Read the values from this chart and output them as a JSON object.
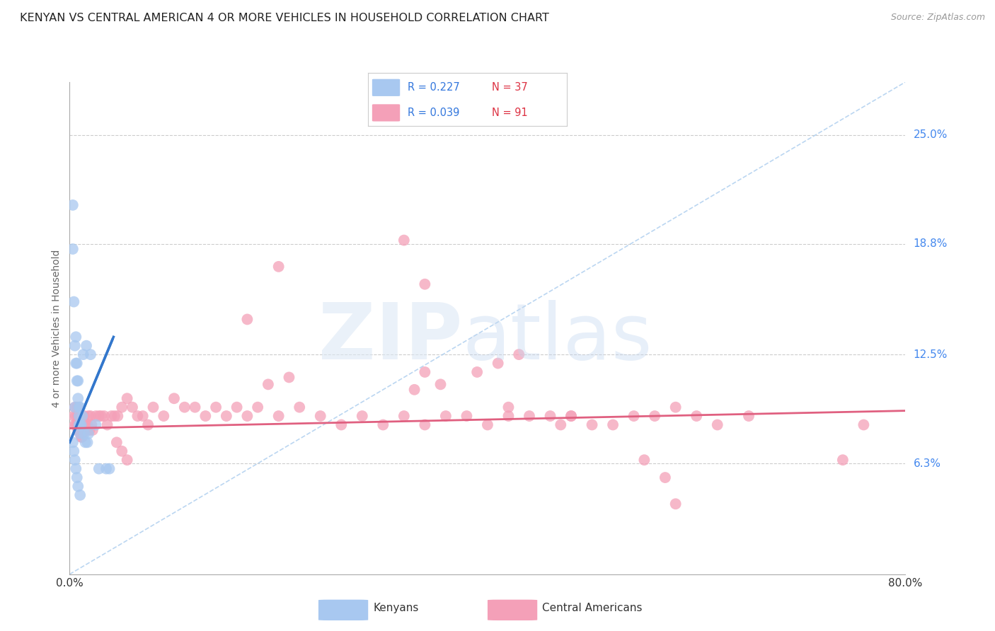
{
  "title": "KENYAN VS CENTRAL AMERICAN 4 OR MORE VEHICLES IN HOUSEHOLD CORRELATION CHART",
  "source": "Source: ZipAtlas.com",
  "ylabel": "4 or more Vehicles in Household",
  "ytick_labels": [
    "25.0%",
    "18.8%",
    "12.5%",
    "6.3%"
  ],
  "ytick_values": [
    0.25,
    0.188,
    0.125,
    0.063
  ],
  "xmin": 0.0,
  "xmax": 0.8,
  "ymin": 0.0,
  "ymax": 0.28,
  "legend_kenyan_R": "0.227",
  "legend_kenyan_N": "37",
  "legend_central_R": "0.039",
  "legend_central_N": "91",
  "kenyan_color": "#a8c8f0",
  "central_color": "#f4a0b8",
  "kenyan_line_color": "#3377cc",
  "central_line_color": "#e06080",
  "diag_line_color": "#aaccee",
  "kenyan_x": [
    0.003,
    0.003,
    0.004,
    0.005,
    0.005,
    0.006,
    0.006,
    0.007,
    0.007,
    0.008,
    0.008,
    0.009,
    0.009,
    0.009,
    0.01,
    0.01,
    0.01,
    0.011,
    0.012,
    0.013,
    0.014,
    0.015,
    0.016,
    0.017,
    0.018,
    0.02,
    0.025,
    0.028,
    0.035,
    0.038,
    0.003,
    0.004,
    0.005,
    0.006,
    0.007,
    0.008,
    0.01
  ],
  "kenyan_y": [
    0.21,
    0.185,
    0.155,
    0.13,
    0.095,
    0.135,
    0.12,
    0.12,
    0.11,
    0.11,
    0.1,
    0.095,
    0.09,
    0.085,
    0.095,
    0.085,
    0.08,
    0.085,
    0.09,
    0.125,
    0.08,
    0.075,
    0.13,
    0.075,
    0.08,
    0.125,
    0.085,
    0.06,
    0.06,
    0.06,
    0.075,
    0.07,
    0.065,
    0.06,
    0.055,
    0.05,
    0.045
  ],
  "central_x": [
    0.004,
    0.005,
    0.005,
    0.006,
    0.006,
    0.007,
    0.007,
    0.008,
    0.008,
    0.009,
    0.009,
    0.01,
    0.01,
    0.011,
    0.011,
    0.012,
    0.012,
    0.013,
    0.014,
    0.015,
    0.016,
    0.017,
    0.018,
    0.019,
    0.02,
    0.021,
    0.022,
    0.025,
    0.028,
    0.03,
    0.033,
    0.036,
    0.04,
    0.043,
    0.046,
    0.05,
    0.055,
    0.06,
    0.065,
    0.07,
    0.075,
    0.08,
    0.09,
    0.1,
    0.11,
    0.12,
    0.13,
    0.14,
    0.15,
    0.16,
    0.17,
    0.18,
    0.2,
    0.22,
    0.24,
    0.26,
    0.28,
    0.3,
    0.32,
    0.34,
    0.36,
    0.38,
    0.4,
    0.42,
    0.44,
    0.46,
    0.48,
    0.5,
    0.52,
    0.54,
    0.56,
    0.58,
    0.6,
    0.33,
    0.355,
    0.19,
    0.21,
    0.045,
    0.05,
    0.055,
    0.34,
    0.42,
    0.47,
    0.48,
    0.55,
    0.57,
    0.58,
    0.62,
    0.65,
    0.74,
    0.76
  ],
  "central_y": [
    0.09,
    0.095,
    0.085,
    0.09,
    0.085,
    0.095,
    0.085,
    0.09,
    0.082,
    0.09,
    0.082,
    0.085,
    0.08,
    0.085,
    0.078,
    0.085,
    0.078,
    0.085,
    0.09,
    0.085,
    0.082,
    0.085,
    0.09,
    0.082,
    0.09,
    0.085,
    0.082,
    0.09,
    0.09,
    0.09,
    0.09,
    0.085,
    0.09,
    0.09,
    0.09,
    0.095,
    0.1,
    0.095,
    0.09,
    0.09,
    0.085,
    0.095,
    0.09,
    0.1,
    0.095,
    0.095,
    0.09,
    0.095,
    0.09,
    0.095,
    0.09,
    0.095,
    0.09,
    0.095,
    0.09,
    0.085,
    0.09,
    0.085,
    0.09,
    0.085,
    0.09,
    0.09,
    0.085,
    0.09,
    0.09,
    0.09,
    0.09,
    0.085,
    0.085,
    0.09,
    0.09,
    0.095,
    0.09,
    0.105,
    0.108,
    0.108,
    0.112,
    0.075,
    0.07,
    0.065,
    0.115,
    0.095,
    0.085,
    0.09,
    0.065,
    0.055,
    0.04,
    0.085,
    0.09,
    0.065,
    0.085
  ],
  "ca_outliers_x": [
    0.32,
    0.34,
    0.2,
    0.17,
    0.39,
    0.41,
    0.43
  ],
  "ca_outliers_y": [
    0.19,
    0.165,
    0.175,
    0.145,
    0.115,
    0.12,
    0.125
  ]
}
